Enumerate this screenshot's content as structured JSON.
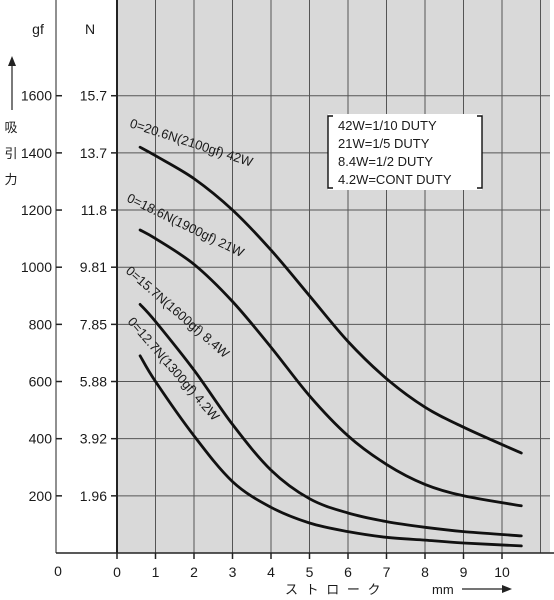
{
  "chart_data": {
    "type": "line",
    "unit_gf": "gf",
    "unit_n": "N",
    "ylabel_chars": [
      "吸",
      "引",
      "力"
    ],
    "xlabel": "ス ト ロ ー ク",
    "xunit": "mm",
    "xlim": [
      0,
      11
    ],
    "x_ticks": [
      "0",
      "1",
      "2",
      "3",
      "4",
      "5",
      "6",
      "7",
      "8",
      "9",
      "10"
    ],
    "ylim_gf": [
      0,
      1800
    ],
    "y_ticks": [
      {
        "gf": 200,
        "gf_label": "200",
        "n_label": "1.96"
      },
      {
        "gf": 400,
        "gf_label": "400",
        "n_label": "3.92"
      },
      {
        "gf": 600,
        "gf_label": "600",
        "n_label": "5.88"
      },
      {
        "gf": 800,
        "gf_label": "800",
        "n_label": "7.85"
      },
      {
        "gf": 1000,
        "gf_label": "1000",
        "n_label": "9.81"
      },
      {
        "gf": 1200,
        "gf_label": "1200",
        "n_label": "11.8"
      },
      {
        "gf": 1400,
        "gf_label": "1400",
        "n_label": "13.7"
      },
      {
        "gf": 1600,
        "gf_label": "1600",
        "n_label": "15.7"
      }
    ],
    "grid": true,
    "legend_position": "top-right",
    "legend": [
      "42W=1/10  DUTY",
      "21W=1/5   DUTY",
      "8.4W=1/2   DUTY",
      "4.2W=CONT DUTY"
    ],
    "series": [
      {
        "name": "0=20.6N(2100gf)  42W",
        "x": [
          0.6,
          1,
          2,
          3,
          4,
          5,
          6,
          7,
          8,
          9,
          10.5
        ],
        "y": [
          1420,
          1390,
          1310,
          1200,
          1060,
          900,
          740,
          610,
          510,
          440,
          350
        ]
      },
      {
        "name": "0=18.6N(1900gf)  21W",
        "x": [
          0.6,
          1,
          2,
          3,
          4,
          5,
          6,
          7,
          8,
          9,
          10.5
        ],
        "y": [
          1130,
          1100,
          1010,
          880,
          720,
          550,
          410,
          310,
          240,
          200,
          165
        ]
      },
      {
        "name": "0=15.7N(1600gf)  8.4W",
        "x": [
          0.6,
          1,
          2,
          3,
          4,
          5,
          6,
          7,
          8,
          9,
          10.5
        ],
        "y": [
          870,
          810,
          640,
          450,
          290,
          190,
          140,
          110,
          90,
          75,
          60
        ]
      },
      {
        "name": "0=12.7N(1300gf)  4.2W",
        "x": [
          0.6,
          1,
          2,
          3,
          4,
          5,
          6,
          7,
          8,
          9,
          10.5
        ],
        "y": [
          690,
          600,
          410,
          250,
          160,
          105,
          75,
          55,
          45,
          35,
          25
        ]
      }
    ]
  }
}
